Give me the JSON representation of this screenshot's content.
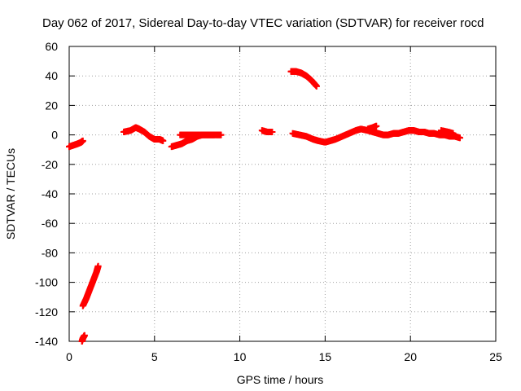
{
  "chart_data": {
    "type": "scatter",
    "title": "Day 062 of 2017, Sidereal Day-to-day VTEC variation (SDTVAR) for receiver rocd",
    "xlabel": "GPS time / hours",
    "ylabel": "SDTVAR / TECUs",
    "xlim": [
      0,
      25
    ],
    "ylim": [
      -140,
      60
    ],
    "xticks": [
      0,
      5,
      10,
      15,
      20,
      25
    ],
    "yticks": [
      -140,
      -120,
      -100,
      -80,
      -60,
      -40,
      -20,
      0,
      20,
      40,
      60
    ],
    "grid": true,
    "marker": "+",
    "color": "#ff0000",
    "series": [
      {
        "name": "SDTVAR",
        "tracks": [
          [
            [
              0.0,
              -8
            ],
            [
              0.25,
              -7
            ],
            [
              0.5,
              -6
            ],
            [
              0.7,
              -5
            ],
            [
              0.8,
              -4
            ]
          ],
          [
            [
              0.75,
              -140
            ],
            [
              0.8,
              -138
            ],
            [
              0.9,
              -136
            ]
          ],
          [
            [
              0.8,
              -116
            ],
            [
              1.0,
              -111
            ],
            [
              1.2,
              -105
            ],
            [
              1.4,
              -99
            ],
            [
              1.6,
              -93
            ],
            [
              1.7,
              -89
            ]
          ],
          [
            [
              3.2,
              2
            ],
            [
              3.6,
              3
            ],
            [
              3.9,
              5
            ],
            [
              4.1,
              4
            ],
            [
              4.4,
              2
            ],
            [
              4.7,
              -1
            ],
            [
              5.0,
              -3
            ],
            [
              5.3,
              -3
            ],
            [
              5.5,
              -4
            ]
          ],
          [
            [
              6.0,
              -8
            ],
            [
              6.3,
              -7
            ],
            [
              6.6,
              -6
            ],
            [
              6.9,
              -4
            ],
            [
              7.2,
              -3
            ],
            [
              7.5,
              -1
            ],
            [
              7.8,
              0
            ],
            [
              8.2,
              0
            ],
            [
              8.6,
              0
            ],
            [
              8.9,
              0
            ]
          ],
          [
            [
              6.5,
              0
            ],
            [
              7.0,
              0
            ],
            [
              7.5,
              0
            ],
            [
              8.0,
              0
            ],
            [
              8.5,
              0
            ]
          ],
          [
            [
              11.3,
              3
            ],
            [
              11.6,
              2
            ],
            [
              11.9,
              2
            ]
          ],
          [
            [
              13.0,
              43
            ],
            [
              13.3,
              43
            ],
            [
              13.6,
              42
            ],
            [
              13.9,
              40
            ],
            [
              14.2,
              37
            ],
            [
              14.5,
              33
            ]
          ],
          [
            [
              13.1,
              1
            ],
            [
              13.5,
              0
            ],
            [
              13.9,
              -1
            ],
            [
              14.3,
              -3
            ],
            [
              14.6,
              -4
            ],
            [
              15.0,
              -5
            ],
            [
              15.3,
              -4
            ],
            [
              15.6,
              -3
            ],
            [
              16.0,
              -1
            ],
            [
              16.4,
              1
            ],
            [
              16.8,
              3
            ],
            [
              17.1,
              4
            ],
            [
              17.5,
              3
            ],
            [
              17.8,
              2
            ],
            [
              18.1,
              1
            ],
            [
              18.4,
              0
            ],
            [
              18.7,
              0
            ],
            [
              19.0,
              1
            ],
            [
              19.3,
              1
            ],
            [
              19.6,
              2
            ],
            [
              19.9,
              3
            ],
            [
              20.2,
              3
            ],
            [
              20.5,
              2
            ],
            [
              20.8,
              2
            ],
            [
              21.1,
              1
            ],
            [
              21.4,
              1
            ],
            [
              21.7,
              0
            ],
            [
              22.0,
              0
            ],
            [
              22.3,
              -1
            ],
            [
              22.6,
              -1
            ],
            [
              22.9,
              -2
            ]
          ],
          [
            [
              17.5,
              4
            ],
            [
              17.8,
              5
            ],
            [
              18.0,
              6
            ]
          ],
          [
            [
              21.8,
              3
            ],
            [
              22.2,
              2
            ],
            [
              22.5,
              1
            ]
          ]
        ]
      }
    ]
  }
}
